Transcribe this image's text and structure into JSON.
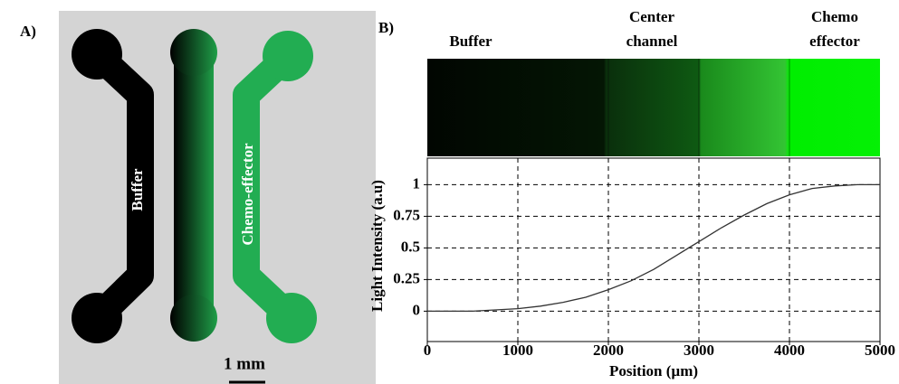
{
  "panel_a": {
    "label": "A)",
    "channel_labels": [
      "Buffer",
      "Chemo-effector"
    ],
    "scale_bar": "1 mm"
  },
  "chart_data": {
    "type": "line",
    "panel_label": "B)",
    "region_labels": [
      [
        "Buffer"
      ],
      [
        "Center",
        "channel"
      ],
      [
        "Chemo",
        "effector"
      ]
    ],
    "x_label": "Position (µm)",
    "y_label": "Light Intensity (a.u)",
    "x": [
      0,
      250,
      500,
      750,
      1000,
      1250,
      1500,
      1750,
      2000,
      2250,
      2500,
      2750,
      3000,
      3250,
      3500,
      3750,
      4000,
      4250,
      4500,
      4750,
      5000
    ],
    "values": [
      0,
      0,
      0,
      0.01,
      0.02,
      0.04,
      0.07,
      0.11,
      0.17,
      0.24,
      0.33,
      0.44,
      0.55,
      0.66,
      0.76,
      0.85,
      0.92,
      0.97,
      0.99,
      1.0,
      1.0
    ],
    "color": "#333333",
    "xlim": [
      0,
      5000
    ],
    "xticks": [
      0,
      1000,
      2000,
      3000,
      4000,
      5000
    ],
    "ylim": [
      -0.24,
      1.21
    ],
    "yticks": [
      0,
      0.25,
      0.5,
      0.75,
      1
    ],
    "grid": true
  }
}
